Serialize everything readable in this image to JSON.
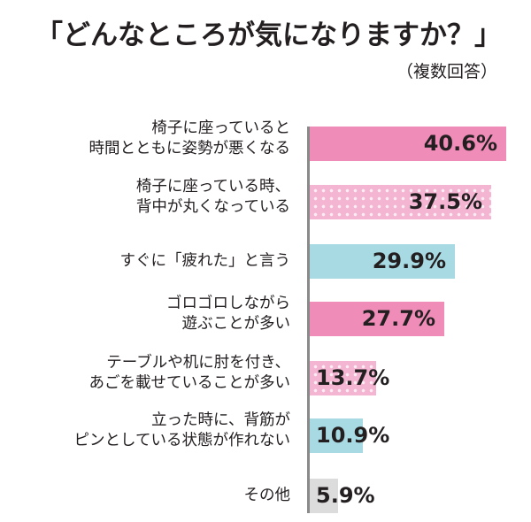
{
  "header": {
    "title": "「どんなところが気になりますか？」",
    "subtitle": "（複数回答）"
  },
  "colors": {
    "pink": "#f08cb8",
    "pink_dotted": "#f4b5d3",
    "blue": "#a8dae4",
    "gray": "#dcdcdc",
    "axis": "#8a8a8a"
  },
  "bars": [
    {
      "line1": "椅子に座っていると",
      "line2": "時間とともに姿勢が悪くなる",
      "value": 40.6,
      "label": "40.6%",
      "style": "pink"
    },
    {
      "line1": "椅子に座っている時、",
      "line2": "背中が丸くなっている",
      "value": 37.5,
      "label": "37.5%",
      "style": "dots"
    },
    {
      "line1": "すぐに「疲れた」と言う",
      "line2": "",
      "value": 29.9,
      "label": "29.9%",
      "style": "blue"
    },
    {
      "line1": "ゴロゴロしながら",
      "line2": "遊ぶことが多い",
      "value": 27.7,
      "label": "27.7%",
      "style": "pink"
    },
    {
      "line1": "テーブルや机に肘を付き、",
      "line2": "あごを載せていることが多い",
      "value": 13.7,
      "label": "13.7%",
      "style": "dots"
    },
    {
      "line1": "立った時に、背筋が",
      "line2": "ピンとしている状態が作れない",
      "value": 10.9,
      "label": "10.9%",
      "style": "blue"
    },
    {
      "line1": "その他",
      "line2": "",
      "value": 5.9,
      "label": "5.9%",
      "style": "gray"
    }
  ],
  "chart_data": {
    "type": "bar",
    "orientation": "horizontal",
    "title": "「どんなところが気になりますか？」",
    "subtitle": "（複数回答）",
    "categories": [
      "椅子に座っていると時間とともに姿勢が悪くなる",
      "椅子に座っている時、背中が丸くなっている",
      "すぐに「疲れた」と言う",
      "ゴロゴロしながら遊ぶことが多い",
      "テーブルや机に肘を付き、あごを載せていることが多い",
      "立った時に、背筋がピンとしている状態が作れない",
      "その他"
    ],
    "values": [
      40.6,
      37.5,
      29.9,
      27.7,
      13.7,
      10.9,
      5.9
    ],
    "unit": "%",
    "xlabel": "",
    "ylabel": "",
    "xlim": [
      0,
      42
    ],
    "grid": false,
    "legend": null,
    "data_labels": true
  }
}
